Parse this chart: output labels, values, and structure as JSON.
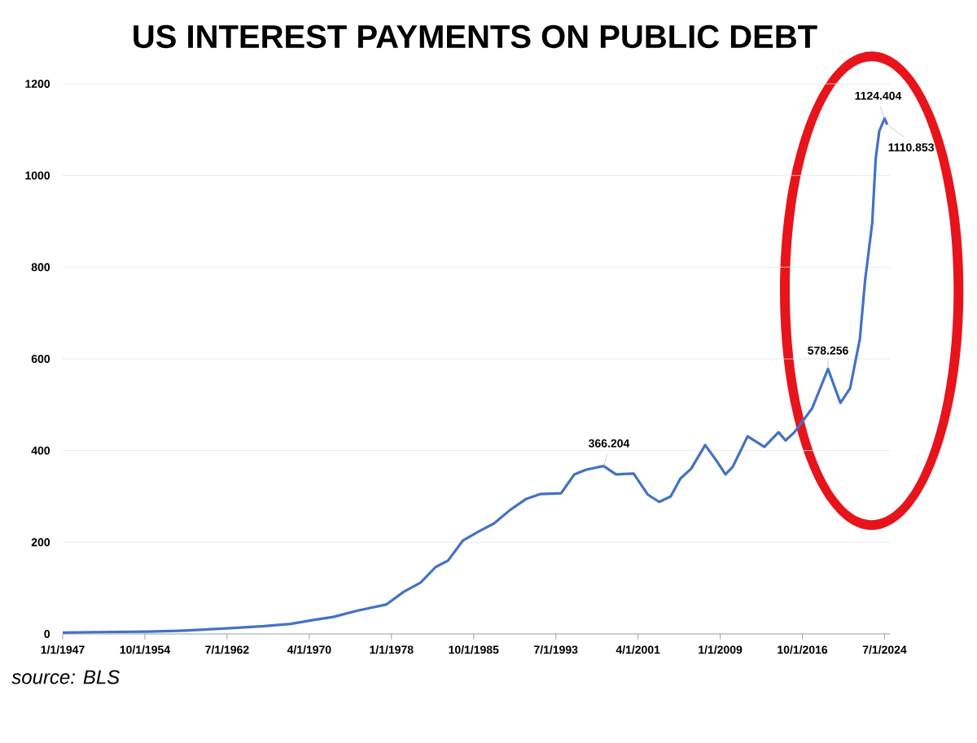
{
  "chart_data": {
    "type": "line",
    "title": "US INTEREST PAYMENTS ON PUBLIC DEBT",
    "color": "#4472c4",
    "x": [
      "1947-01",
      "1950-01",
      "1955-01",
      "1958-01",
      "1962-07",
      "1966-01",
      "1968-07",
      "1970-07",
      "1972-07",
      "1974-11",
      "1977-07",
      "1979-03",
      "1980-10",
      "1982-03",
      "1983-05",
      "1984-10",
      "1986-04",
      "1987-09",
      "1989-03",
      "1990-09",
      "1992-01",
      "1994-01",
      "1995-04",
      "1996-05",
      "1998-01",
      "1999-03",
      "2000-11",
      "2002-03",
      "2003-04",
      "2004-05",
      "2005-04",
      "2006-04",
      "2007-08",
      "2008-08",
      "2009-07",
      "2010-03",
      "2011-08",
      "2013-03",
      "2014-07",
      "2015-03",
      "2016-01",
      "2017-09",
      "2019-03",
      "2020-05",
      "2021-04",
      "2022-03",
      "2022-09",
      "2023-05",
      "2023-09",
      "2024-01",
      "2024-07",
      "2024-10"
    ],
    "values": [
      3,
      4,
      5,
      7,
      12,
      17,
      22,
      30,
      37,
      51,
      64,
      92,
      112,
      146,
      160,
      204,
      224,
      241,
      270,
      294,
      305,
      307,
      348,
      358,
      366.204,
      348,
      350,
      304,
      288,
      300,
      339,
      360,
      412,
      380,
      348,
      364,
      431,
      408,
      440,
      422,
      440,
      492,
      578.256,
      504,
      536,
      643,
      772,
      896,
      1038,
      1097,
      1124.404,
      1110.853
    ],
    "xlim": [
      "1947-01-01",
      "2025-01-01"
    ],
    "ylim": [
      0,
      1200
    ],
    "xticks": [
      {
        "value": "1947-01-01",
        "label": "1/1/1947"
      },
      {
        "value": "1954-10-01",
        "label": "10/1/1954"
      },
      {
        "value": "1962-07-01",
        "label": "7/1/1962"
      },
      {
        "value": "1970-04-01",
        "label": "4/1/1970"
      },
      {
        "value": "1978-01-01",
        "label": "1/1/1978"
      },
      {
        "value": "1985-10-01",
        "label": "10/1/1985"
      },
      {
        "value": "1993-07-01",
        "label": "7/1/1993"
      },
      {
        "value": "2001-04-01",
        "label": "4/1/2001"
      },
      {
        "value": "2009-01-01",
        "label": "1/1/2009"
      },
      {
        "value": "2016-10-01",
        "label": "10/1/2016"
      },
      {
        "value": "2024-07-01",
        "label": "7/1/2024"
      }
    ],
    "yticks": [
      0,
      200,
      400,
      600,
      800,
      1000,
      1200
    ],
    "grid": "y",
    "annotations": [
      {
        "text": "366.204",
        "x": "1998-01",
        "y": 366.204
      },
      {
        "text": "578.256",
        "x": "2019-03",
        "y": 578.256
      },
      {
        "text": "1124.404",
        "x": "2024-07",
        "y": 1124.404
      },
      {
        "text": "1110.853",
        "x": "2024-10",
        "y": 1110.853
      },
      "source: BLS"
    ]
  }
}
